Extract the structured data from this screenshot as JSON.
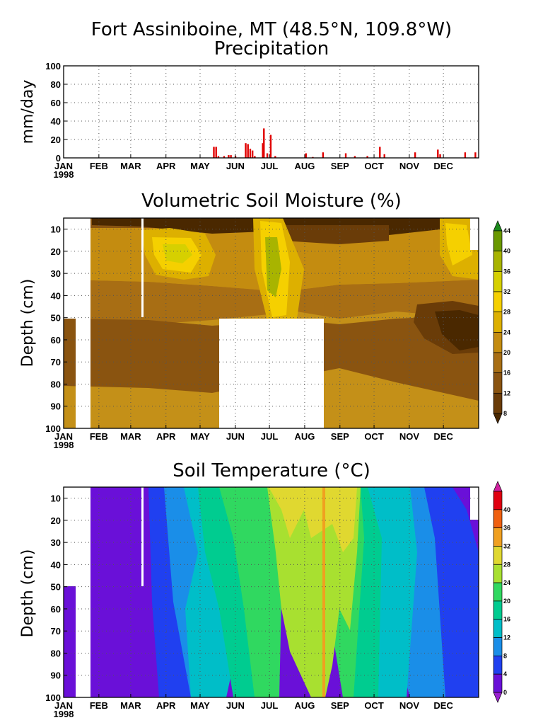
{
  "chart_data": [
    {
      "type": "bar",
      "title": "Fort Assiniboine, MT (48.5°N, 109.8°W)",
      "subtitle": "Precipitation",
      "ylabel": "mm/day",
      "ylim": [
        0,
        100
      ],
      "yticks": [
        "0",
        "20",
        "40",
        "60",
        "80",
        "100"
      ],
      "xticks": [
        "JAN",
        "FEB",
        "MAR",
        "APR",
        "MAY",
        "JUN",
        "JUL",
        "AUG",
        "SEP",
        "OCT",
        "NOV",
        "DEC"
      ],
      "year_label": "1998",
      "grid": true,
      "bar_color": "#e00000",
      "x_unit": "day of year",
      "bars": [
        {
          "x": 132,
          "y": 12
        },
        {
          "x": 134,
          "y": 12
        },
        {
          "x": 136,
          "y": 2
        },
        {
          "x": 141,
          "y": 2
        },
        {
          "x": 145,
          "y": 3
        },
        {
          "x": 147,
          "y": 3
        },
        {
          "x": 151,
          "y": 2
        },
        {
          "x": 160,
          "y": 16
        },
        {
          "x": 162,
          "y": 15
        },
        {
          "x": 164,
          "y": 10
        },
        {
          "x": 166,
          "y": 8
        },
        {
          "x": 168,
          "y": 2
        },
        {
          "x": 175,
          "y": 16
        },
        {
          "x": 176,
          "y": 32
        },
        {
          "x": 179,
          "y": 5
        },
        {
          "x": 182,
          "y": 25
        },
        {
          "x": 186,
          "y": 2
        },
        {
          "x": 213,
          "y": 5
        },
        {
          "x": 219,
          "y": 1
        },
        {
          "x": 228,
          "y": 6
        },
        {
          "x": 248,
          "y": 5
        },
        {
          "x": 256,
          "y": 2
        },
        {
          "x": 267,
          "y": 2
        },
        {
          "x": 278,
          "y": 12
        },
        {
          "x": 282,
          "y": 4
        },
        {
          "x": 309,
          "y": 6
        },
        {
          "x": 329,
          "y": 9
        },
        {
          "x": 331,
          "y": 4
        },
        {
          "x": 353,
          "y": 6
        },
        {
          "x": 362,
          "y": 6
        }
      ]
    },
    {
      "type": "heatmap",
      "title": "Volumetric Soil Moisture (%)",
      "ylabel": "Depth (cm)",
      "ylim": [
        100,
        5
      ],
      "yticks": [
        "10",
        "20",
        "30",
        "40",
        "50",
        "60",
        "70",
        "80",
        "90",
        "100"
      ],
      "xticks": [
        "JAN",
        "FEB",
        "MAR",
        "APR",
        "MAY",
        "JUN",
        "JUL",
        "AUG",
        "SEP",
        "OCT",
        "NOV",
        "DEC"
      ],
      "year_label": "1998",
      "colorbar_labels": [
        "8",
        "12",
        "16",
        "20",
        "24",
        "28",
        "32",
        "36",
        "40",
        "44"
      ],
      "colorbar_colors": [
        "#4a2800",
        "#6a3c08",
        "#8a5410",
        "#a86e14",
        "#c48c10",
        "#ddb000",
        "#f5d000",
        "#d6d000",
        "#a8b400",
        "#6a9800",
        "#1c8a1c"
      ],
      "grid": true
    },
    {
      "type": "heatmap",
      "title": "Soil Temperature (°C)",
      "ylabel": "Depth (cm)",
      "ylim": [
        100,
        5
      ],
      "yticks": [
        "10",
        "20",
        "30",
        "40",
        "50",
        "60",
        "70",
        "80",
        "90",
        "100"
      ],
      "xticks": [
        "JAN",
        "FEB",
        "MAR",
        "APR",
        "MAY",
        "JUN",
        "JUL",
        "AUG",
        "SEP",
        "OCT",
        "NOV",
        "DEC"
      ],
      "year_label": "1998",
      "colorbar_labels": [
        "0",
        "4",
        "8",
        "12",
        "16",
        "20",
        "24",
        "28",
        "32",
        "36",
        "40"
      ],
      "colorbar_colors": [
        "#9a20d0",
        "#6a10d8",
        "#2040f0",
        "#1a8ee8",
        "#00bec8",
        "#00cc90",
        "#30d860",
        "#a8e030",
        "#e0d830",
        "#f0a020",
        "#f06010",
        "#e00010",
        "#d020a0"
      ],
      "grid": true
    }
  ]
}
